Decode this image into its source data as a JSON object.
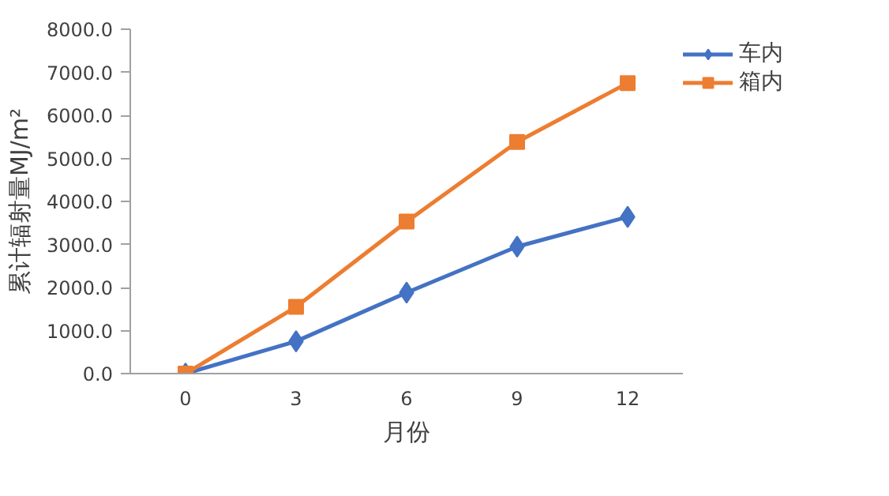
{
  "chart_data": {
    "type": "line",
    "xlabel": "月份",
    "ylabel": "累计辐射量MJ/m²",
    "categories": [
      "0",
      "3",
      "6",
      "9",
      "12"
    ],
    "series": [
      {
        "name": "车内",
        "color": "#4472c4",
        "marker": "diamond",
        "values": [
          0,
          750,
          1880,
          2950,
          3640
        ]
      },
      {
        "name": "箱内",
        "color": "#ed7d31",
        "marker": "square",
        "values": [
          0,
          1550,
          3530,
          5380,
          6750
        ]
      }
    ],
    "ylim": [
      0,
      8000
    ],
    "yticks": [
      {
        "value": 0,
        "label": "0.0"
      },
      {
        "value": 1000,
        "label": "1000.0"
      },
      {
        "value": 2000,
        "label": "2000.0"
      },
      {
        "value": 3000,
        "label": "3000.0"
      },
      {
        "value": 4000,
        "label": "4000.0"
      },
      {
        "value": 5000,
        "label": "5000.0"
      },
      {
        "value": 6000,
        "label": "6000.0"
      },
      {
        "value": 7000,
        "label": "7000.0"
      },
      {
        "value": 8000,
        "label": "8000.0"
      }
    ],
    "grid": false,
    "legend": "top right",
    "line_style": "solid"
  }
}
